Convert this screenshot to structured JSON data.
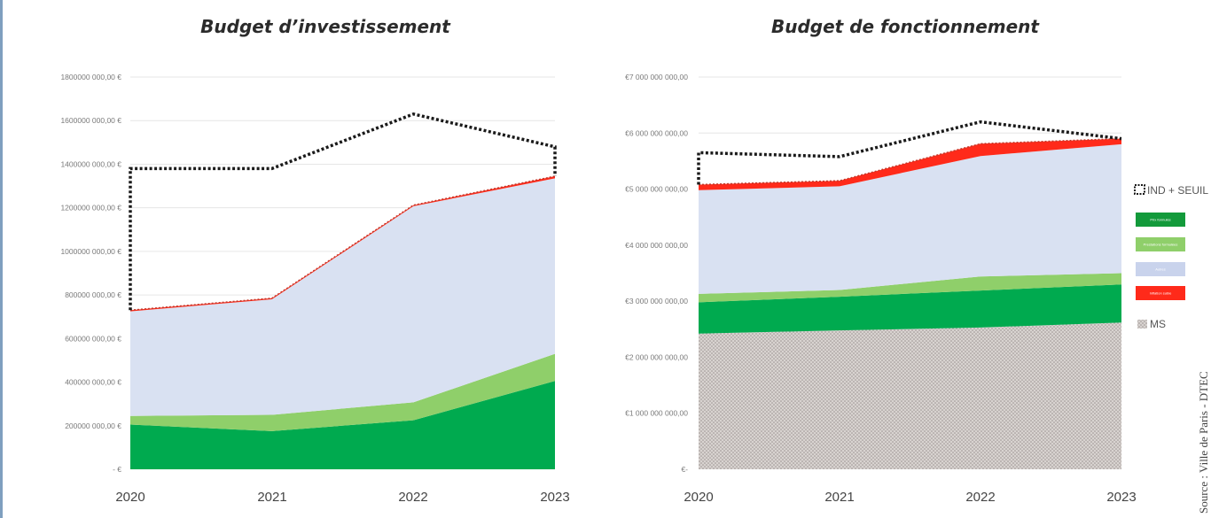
{
  "chart_data": [
    {
      "type": "area",
      "stacked": true,
      "title": "Budget d’investissement",
      "x": [
        "2020",
        "2021",
        "2022",
        "2023"
      ],
      "ylim": [
        0,
        1800000000
      ],
      "yticks": [
        0,
        200000000,
        400000000,
        600000000,
        800000000,
        1000000000,
        1200000000,
        1400000000,
        1600000000,
        1800000000
      ],
      "ytick_labels": [
        "- €",
        "200000 000,00 €",
        "400000 000,00 €",
        "600000 000,00 €",
        "800000 000,00 €",
        "1000000 000,00 €",
        "1200000 000,00 €",
        "1400000 000,00 €",
        "1600000 000,00 €",
        "1800000 000,00 €"
      ],
      "grid": true,
      "series": [
        {
          "color": "#00aa4f",
          "values": [
            205000000,
            175000000,
            225000000,
            405000000
          ]
        },
        {
          "color": "#8fcf6a",
          "values": [
            40000000,
            75000000,
            82000000,
            125000000
          ]
        },
        {
          "color": "#d9e1f2",
          "values": [
            480000000,
            530000000,
            900000000,
            805000000
          ]
        },
        {
          "color": "#ff2a1a",
          "values": [
            5000000,
            5000000,
            5000000,
            10000000
          ]
        }
      ],
      "threshold": {
        "label": "IND + SEUIL",
        "values": [
          1380000000,
          1380000000,
          1630000000,
          1480000000
        ]
      }
    },
    {
      "type": "area",
      "stacked": true,
      "title": "Budget de fonctionnement",
      "x": [
        "2020",
        "2021",
        "2022",
        "2023"
      ],
      "ylim": [
        0,
        7000000000
      ],
      "yticks": [
        0,
        1000000000,
        2000000000,
        3000000000,
        4000000000,
        5000000000,
        6000000000,
        7000000000
      ],
      "ytick_labels": [
        "€-",
        "€1 000 000 000,00",
        "€2 000 000 000,00",
        "€3 000 000 000,00",
        "€4 000 000 000,00",
        "€5 000 000 000,00",
        "€6 000 000 000,00",
        "€7 000 000 000,00"
      ],
      "grid": true,
      "series": [
        {
          "name": "MS",
          "color": "#c8c2bf",
          "pattern": "dots",
          "values": [
            2420000000,
            2480000000,
            2530000000,
            2620000000
          ]
        },
        {
          "color": "#00aa4f",
          "values": [
            560000000,
            600000000,
            660000000,
            680000000
          ]
        },
        {
          "color": "#8fcf6a",
          "values": [
            150000000,
            120000000,
            250000000,
            200000000
          ]
        },
        {
          "color": "#d9e1f2",
          "values": [
            1850000000,
            1850000000,
            2150000000,
            2300000000
          ]
        },
        {
          "color": "#ff2a1a",
          "values": [
            100000000,
            100000000,
            220000000,
            100000000
          ]
        }
      ],
      "threshold": {
        "label": "IND + SEUIL",
        "values": [
          5650000000,
          5580000000,
          6200000000,
          5900000000
        ]
      }
    }
  ],
  "legend": {
    "placement": "right",
    "items": [
      {
        "label": "IND + SEUIL",
        "kind": "dotted-outline"
      },
      {
        "label": "Prix formulés",
        "kind": "swatch",
        "color": "#139a3b"
      },
      {
        "label": "Prestations formulées",
        "kind": "swatch",
        "color": "#8fcf6a"
      },
      {
        "label": "Autres",
        "kind": "swatch",
        "color": "#c9d3ec"
      },
      {
        "label": "Inflation subie",
        "kind": "swatch",
        "color": "#ff2a1a"
      },
      {
        "label": "MS",
        "kind": "pattern"
      }
    ]
  },
  "source": "Source : Ville de Paris - DTEC"
}
